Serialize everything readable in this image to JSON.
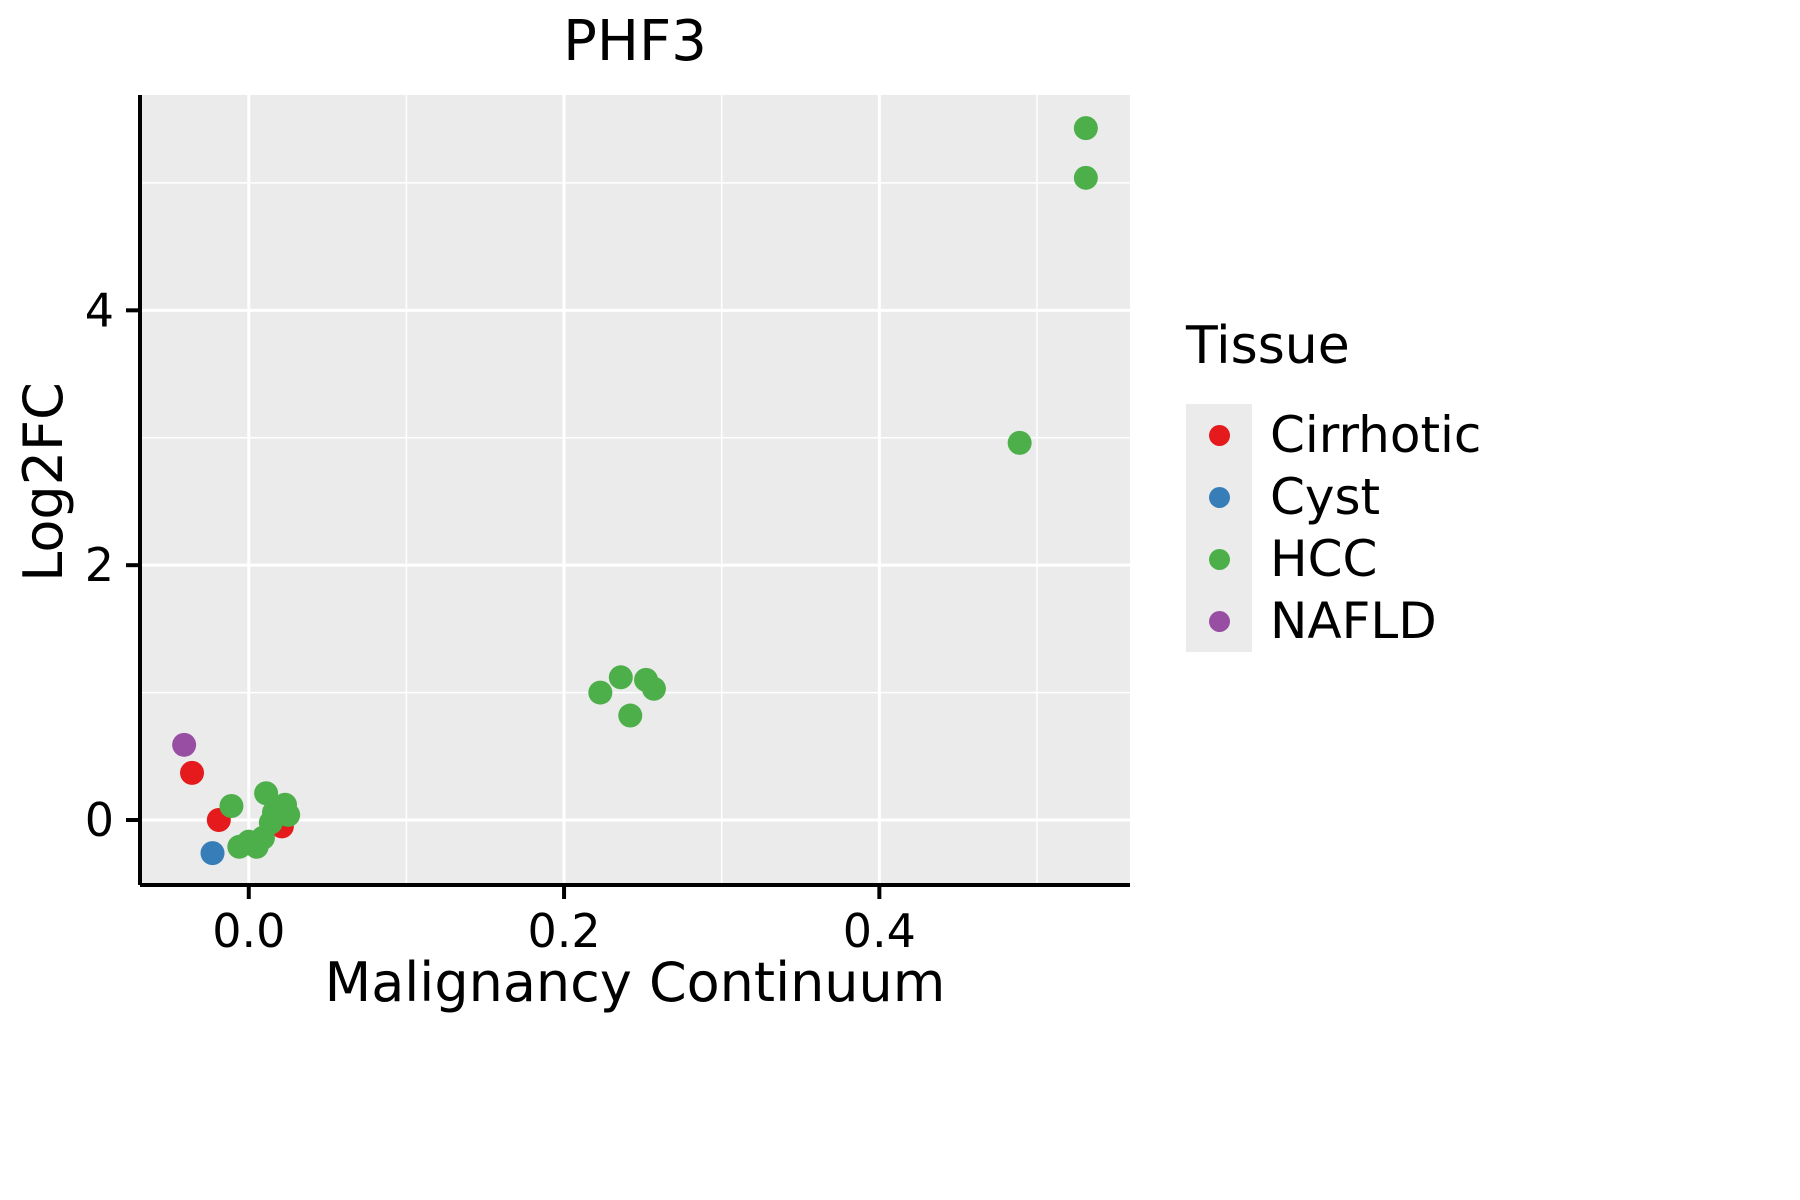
{
  "chart_data": {
    "type": "scatter",
    "title": "PHF3",
    "xlabel": "Malignancy Continuum",
    "ylabel": "Log2FC",
    "legend_title": "Tissue",
    "legend_position": "right",
    "grid": true,
    "panel_bg": "#EBEBEB",
    "grid_color": "#FFFFFF",
    "axis_color": "#000000",
    "xlim": [
      -0.069,
      0.559
    ],
    "ylim": [
      -0.51,
      5.69
    ],
    "x_ticks": [
      0.0,
      0.2,
      0.4
    ],
    "x_tick_labels": [
      "0.0",
      "0.2",
      "0.4"
    ],
    "y_ticks": [
      0,
      2,
      4
    ],
    "y_tick_labels": [
      "0",
      "2",
      "4"
    ],
    "x_minor_ticks": [
      0.1,
      0.3,
      0.5
    ],
    "y_minor_ticks": [
      1,
      3,
      5
    ],
    "point_radius": 12,
    "series": [
      {
        "name": "Cirrhotic",
        "color": "#E41A1C",
        "points": [
          [
            -0.036,
            0.37
          ],
          [
            -0.019,
            0.0
          ],
          [
            0.021,
            -0.05
          ]
        ]
      },
      {
        "name": "Cyst",
        "color": "#377EB8",
        "points": [
          [
            -0.023,
            -0.26
          ]
        ]
      },
      {
        "name": "HCC",
        "color": "#4DAF4A",
        "points": [
          [
            -0.011,
            0.11
          ],
          [
            -0.006,
            -0.21
          ],
          [
            0.0,
            -0.17
          ],
          [
            0.005,
            -0.21
          ],
          [
            0.009,
            -0.14
          ],
          [
            0.011,
            0.21
          ],
          [
            0.014,
            -0.02
          ],
          [
            0.016,
            0.06
          ],
          [
            0.023,
            0.12
          ],
          [
            0.025,
            0.04
          ],
          [
            0.223,
            1.0
          ],
          [
            0.236,
            1.12
          ],
          [
            0.242,
            0.82
          ],
          [
            0.252,
            1.1
          ],
          [
            0.257,
            1.03
          ],
          [
            0.489,
            2.96
          ],
          [
            0.531,
            5.43
          ],
          [
            0.531,
            5.04
          ]
        ]
      },
      {
        "name": "NAFLD",
        "color": "#984EA3",
        "points": [
          [
            -0.041,
            0.59
          ]
        ]
      }
    ]
  }
}
